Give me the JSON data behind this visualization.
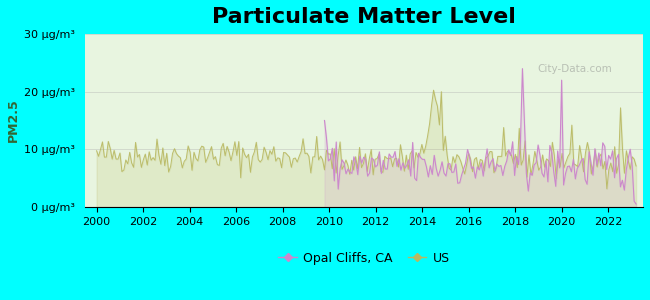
{
  "title": "Particulate Matter Level",
  "ylabel": "PM2.5",
  "background_color": "#00FFFF",
  "plot_bg_color": "#e8f5e0",
  "ylim": [
    0,
    30
  ],
  "yticks": [
    0,
    10,
    20,
    30
  ],
  "ytick_labels": [
    "0 μg/m³",
    "10 μg/m³",
    "20 μg/m³",
    "30 μg/m³"
  ],
  "xlim": [
    1999.5,
    2023.5
  ],
  "xticks": [
    2000,
    2002,
    2004,
    2006,
    2008,
    2010,
    2012,
    2014,
    2016,
    2018,
    2020,
    2022
  ],
  "legend_labels": [
    "Opal Cliffs, CA",
    "US"
  ],
  "opal_color": "#cc88cc",
  "us_color": "#b8b860",
  "watermark": "City-Data.com",
  "title_fontsize": 16,
  "axis_label_fontsize": 9,
  "tick_fontsize": 8
}
